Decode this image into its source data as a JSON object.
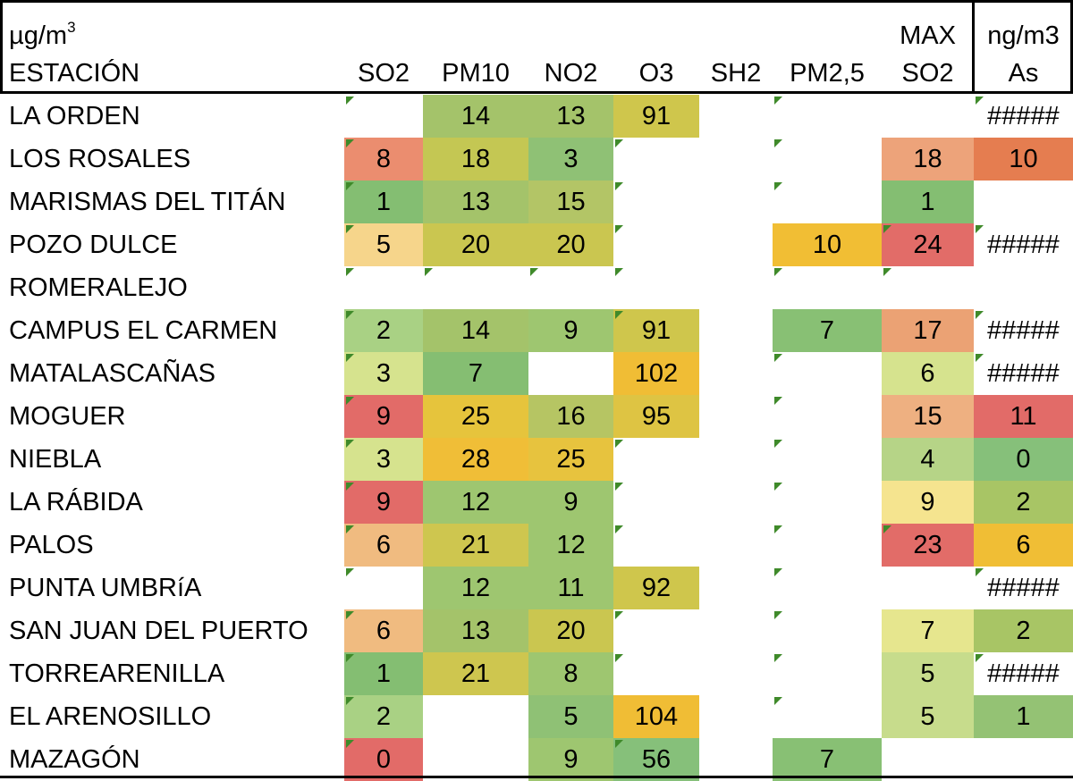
{
  "header": {
    "unit_label": "µg/m",
    "unit_exp": "3",
    "station_label": "ESTACIÓN",
    "max_label": "MAX",
    "unit_label_as": "ng/m3",
    "columns": [
      "SO2",
      "PM10",
      "NO2",
      "O3",
      "SH2",
      "PM2,5",
      "SO2",
      "As"
    ]
  },
  "rows": [
    {
      "station": "LA ORDEN",
      "values": [
        "",
        "14",
        "13",
        "91",
        "",
        "",
        "",
        "#####"
      ],
      "colors": [
        "",
        "#a4c36a",
        "#a4c36a",
        "#cfc64c",
        "",
        "",
        "",
        ""
      ],
      "marks": [
        1,
        0,
        0,
        0,
        0,
        1,
        0,
        1
      ]
    },
    {
      "station": "LOS ROSALES",
      "values": [
        "8",
        "18",
        "3",
        "",
        "",
        "",
        "18",
        "10"
      ],
      "colors": [
        "#eb8d6f",
        "#c4c753",
        "#8fc175",
        "",
        "",
        "",
        "#eda37a",
        "#e57d50"
      ],
      "marks": [
        1,
        0,
        0,
        1,
        0,
        1,
        0,
        0
      ]
    },
    {
      "station": "MARISMAS DEL TITÁN",
      "values": [
        "1",
        "13",
        "15",
        "",
        "",
        "",
        "1",
        ""
      ],
      "colors": [
        "#84be72",
        "#a4c36a",
        "#b3c566",
        "",
        "",
        "",
        "#84be72",
        ""
      ],
      "marks": [
        1,
        0,
        0,
        1,
        0,
        1,
        0,
        0
      ]
    },
    {
      "station": "POZO DULCE",
      "values": [
        "5",
        "20",
        "20",
        "",
        "",
        "10",
        "24",
        "#####"
      ],
      "colors": [
        "#f6d58b",
        "#cac650",
        "#cac650",
        "",
        "",
        "#f1be34",
        "#e26c68",
        ""
      ],
      "marks": [
        1,
        0,
        0,
        1,
        0,
        0,
        1,
        1
      ]
    },
    {
      "station": "ROMERALEJO",
      "values": [
        "",
        "",
        "",
        "",
        "",
        "",
        "",
        ""
      ],
      "colors": [
        "",
        "",
        "",
        "",
        "",
        "",
        "",
        ""
      ],
      "marks": [
        1,
        1,
        1,
        1,
        0,
        1,
        1,
        0
      ]
    },
    {
      "station": "CAMPUS EL CARMEN",
      "values": [
        "2",
        "14",
        "9",
        "91",
        "",
        "7",
        "17",
        "#####"
      ],
      "colors": [
        "#a9d184",
        "#a4c36a",
        "#9ec670",
        "#cfc64c",
        "",
        "#88c074",
        "#eba274",
        ""
      ],
      "marks": [
        1,
        0,
        0,
        1,
        0,
        0,
        0,
        1
      ]
    },
    {
      "station": "MATALASCAÑAS",
      "values": [
        "3",
        "7",
        "",
        "102",
        "",
        "",
        "6",
        "#####"
      ],
      "colors": [
        "#d6e38e",
        "#85be72",
        "",
        "#f0bd35",
        "",
        "",
        "#d6e38e",
        ""
      ],
      "marks": [
        1,
        0,
        0,
        0,
        0,
        1,
        0,
        1
      ]
    },
    {
      "station": "MOGUER",
      "values": [
        "9",
        "25",
        "16",
        "95",
        "",
        "",
        "15",
        "11"
      ],
      "colors": [
        "#e26b68",
        "#e6c43c",
        "#b6c563",
        "#dec443",
        "",
        "",
        "#eeb081",
        "#e26b68"
      ],
      "marks": [
        1,
        0,
        0,
        0,
        0,
        1,
        0,
        0
      ]
    },
    {
      "station": "NIEBLA",
      "values": [
        "3",
        "28",
        "25",
        "",
        "",
        "",
        "4",
        "0"
      ],
      "colors": [
        "#d6e38e",
        "#f0be37",
        "#e7c33e",
        "",
        "",
        "",
        "#b6d487",
        "#86c07a"
      ],
      "marks": [
        1,
        0,
        0,
        1,
        0,
        1,
        0,
        0
      ]
    },
    {
      "station": "LA RÁBIDA",
      "values": [
        "9",
        "12",
        "9",
        "",
        "",
        "",
        "9",
        "2"
      ],
      "colors": [
        "#e26b68",
        "#9ec670",
        "#9ec670",
        "",
        "",
        "",
        "#f5e48f",
        "#a8c565"
      ],
      "marks": [
        1,
        0,
        0,
        1,
        0,
        1,
        0,
        0
      ]
    },
    {
      "station": "PALOS",
      "values": [
        "6",
        "21",
        "12",
        "",
        "",
        "",
        "23",
        "6"
      ],
      "colors": [
        "#f0bb80",
        "#cec64f",
        "#9ec670",
        "",
        "",
        "",
        "#e26c68",
        "#f0be35"
      ],
      "marks": [
        1,
        0,
        0,
        1,
        0,
        1,
        1,
        0
      ]
    },
    {
      "station": "PUNTA UMBRíA",
      "values": [
        "",
        "12",
        "11",
        "92",
        "",
        "",
        "",
        "#####"
      ],
      "colors": [
        "",
        "#9ec670",
        "#9ec670",
        "#cfc64c",
        "",
        "",
        "",
        ""
      ],
      "marks": [
        1,
        0,
        0,
        0,
        0,
        1,
        0,
        1
      ]
    },
    {
      "station": "SAN JUAN DEL PUERTO",
      "values": [
        "6",
        "13",
        "20",
        "",
        "",
        "",
        "7",
        "2"
      ],
      "colors": [
        "#f0bb80",
        "#a4c36a",
        "#cac650",
        "",
        "",
        "",
        "#e6e68e",
        "#a8c565"
      ],
      "marks": [
        1,
        0,
        0,
        1,
        0,
        1,
        0,
        0
      ]
    },
    {
      "station": "TORREARENILLA",
      "values": [
        "1",
        "21",
        "8",
        "",
        "",
        "",
        "5",
        "#####"
      ],
      "colors": [
        "#84be72",
        "#cec64f",
        "#9ec670",
        "",
        "",
        "",
        "#c7dc8c",
        ""
      ],
      "marks": [
        1,
        0,
        0,
        1,
        0,
        1,
        0,
        1
      ]
    },
    {
      "station": "EL ARENOSILLO",
      "values": [
        "2",
        "",
        "5",
        "104",
        "",
        "",
        "5",
        "1"
      ],
      "colors": [
        "#a9d184",
        "",
        "#8fc175",
        "#f0bd35",
        "",
        "",
        "#c7dc8c",
        "#94c274"
      ],
      "marks": [
        1,
        0,
        0,
        0,
        0,
        1,
        0,
        0
      ]
    },
    {
      "station": "MAZAGÓN",
      "values": [
        "0",
        "",
        "9",
        "56",
        "",
        "7",
        "",
        ""
      ],
      "colors": [
        "#e26b68",
        "",
        "#9ec670",
        "#86c07a",
        "",
        "#88c074",
        "",
        ""
      ],
      "marks": [
        1,
        0,
        0,
        1,
        0,
        0,
        0,
        0
      ]
    }
  ]
}
